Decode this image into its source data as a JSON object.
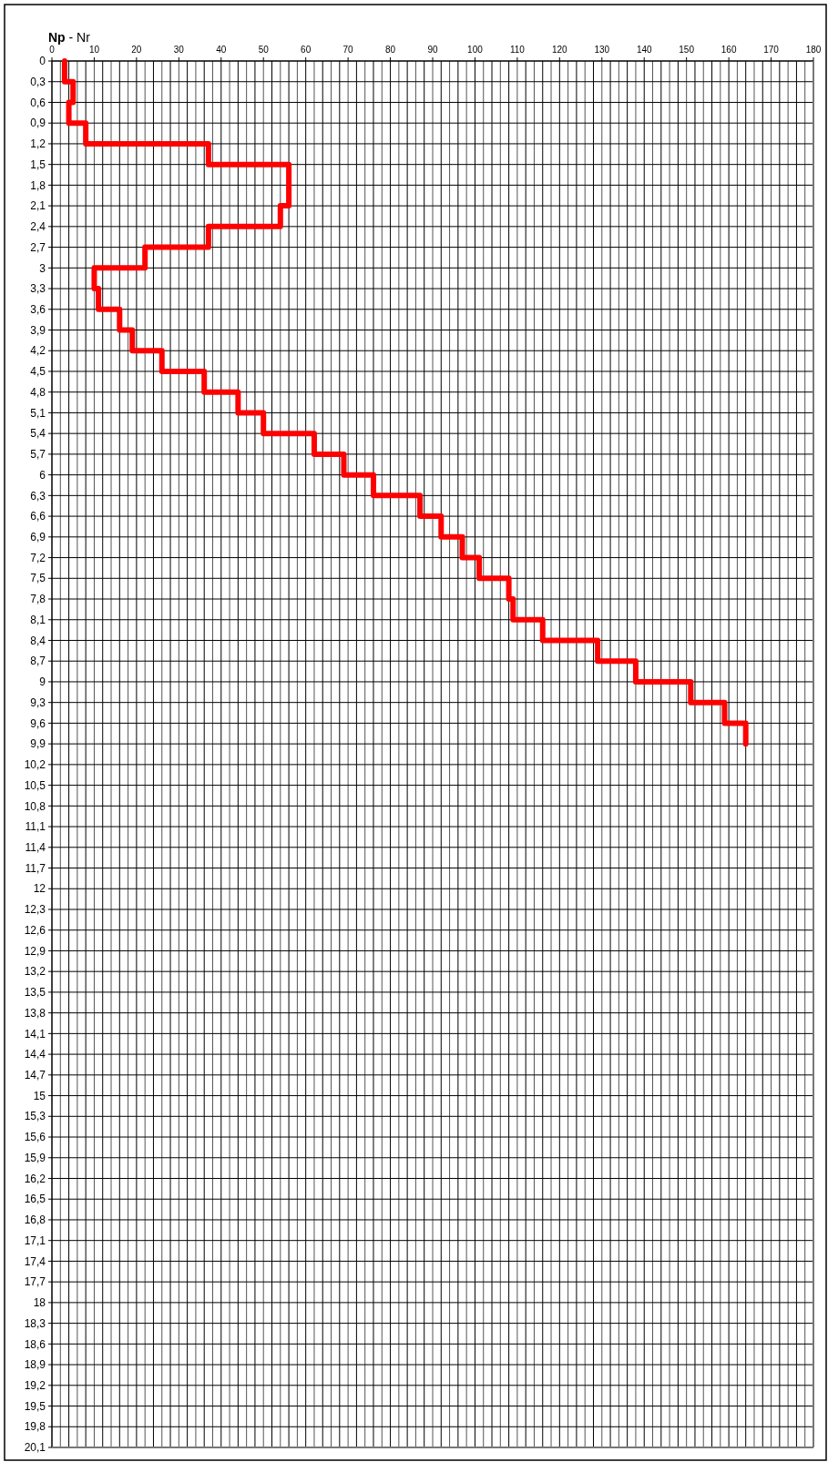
{
  "chart_data": {
    "type": "line",
    "xlabel": "Np - Nr",
    "x": [
      3,
      3,
      5,
      5,
      4,
      4,
      8,
      8,
      37,
      37,
      56,
      56,
      56,
      56,
      54,
      54,
      37,
      37,
      22,
      22,
      10,
      10,
      11,
      11,
      16,
      16,
      19,
      19,
      26,
      26,
      36,
      36,
      44,
      44,
      50,
      50,
      62,
      62,
      69,
      69,
      76,
      76,
      87,
      87,
      92,
      92,
      97,
      97,
      101,
      101,
      108,
      108,
      109,
      109,
      116,
      116,
      129,
      129,
      138,
      138,
      151,
      151,
      159,
      159,
      164,
      164
    ],
    "series": [
      {
        "color": "#ff0000",
        "values": [
          0,
          0.3,
          0.3,
          0.6,
          0.6,
          0.9,
          0.9,
          1.2,
          1.2,
          1.5,
          1.5,
          1.8,
          1.8,
          2.1,
          2.1,
          2.4,
          2.4,
          2.7,
          2.7,
          3,
          3,
          3.3,
          3.3,
          3.6,
          3.6,
          3.9,
          3.9,
          4.2,
          4.2,
          4.5,
          4.5,
          4.8,
          4.8,
          5.1,
          5.1,
          5.4,
          5.4,
          5.7,
          5.7,
          6,
          6,
          6.3,
          6.3,
          6.6,
          6.6,
          6.9,
          6.9,
          7.2,
          7.2,
          7.5,
          7.5,
          7.8,
          7.8,
          8.1,
          8.1,
          8.4,
          8.4,
          8.7,
          8.7,
          9,
          9,
          9.3,
          9.3,
          9.6,
          9.6,
          9.9
        ]
      }
    ],
    "xlim": [
      0,
      180
    ],
    "xticks": [
      0,
      {
        "value": 2,
        "label": null
      },
      {
        "value": 4,
        "label": null
      },
      {
        "value": 6,
        "label": null
      },
      {
        "value": 8,
        "label": null
      },
      10,
      {
        "value": 12,
        "label": null
      },
      {
        "value": 14,
        "label": null
      },
      {
        "value": 16,
        "label": null
      },
      {
        "value": 18,
        "label": null
      },
      20,
      {
        "value": 22,
        "label": null
      },
      {
        "value": 24,
        "label": null
      },
      {
        "value": 26,
        "label": null
      },
      {
        "value": 28,
        "label": null
      },
      30,
      {
        "value": 32,
        "label": null
      },
      {
        "value": 34,
        "label": null
      },
      {
        "value": 36,
        "label": null
      },
      {
        "value": 38,
        "label": null
      },
      40,
      {
        "value": 42,
        "label": null
      },
      {
        "value": 44,
        "label": null
      },
      {
        "value": 46,
        "label": null
      },
      {
        "value": 48,
        "label": null
      },
      50,
      {
        "value": 52,
        "label": null
      },
      {
        "value": 54,
        "label": null
      },
      {
        "value": 56,
        "label": null
      },
      {
        "value": 58,
        "label": null
      },
      60,
      {
        "value": 62,
        "label": null
      },
      {
        "value": 64,
        "label": null
      },
      {
        "value": 66,
        "label": null
      },
      {
        "value": 68,
        "label": null
      },
      70,
      {
        "value": 72,
        "label": null
      },
      {
        "value": 74,
        "label": null
      },
      {
        "value": 76,
        "label": null
      },
      {
        "value": 78,
        "label": null
      },
      80,
      {
        "value": 82,
        "label": null
      },
      {
        "value": 84,
        "label": null
      },
      {
        "value": 86,
        "label": null
      },
      {
        "value": 88,
        "label": null
      },
      90,
      {
        "value": 92,
        "label": null
      },
      {
        "value": 94,
        "label": null
      },
      {
        "value": 96,
        "label": null
      },
      {
        "value": 98,
        "label": null
      },
      100,
      {
        "value": 102,
        "label": null
      },
      {
        "value": 104,
        "label": null
      },
      {
        "value": 106,
        "label": null
      },
      {
        "value": 108,
        "label": null
      },
      110,
      {
        "value": 112,
        "label": null
      },
      {
        "value": 114,
        "label": null
      },
      {
        "value": 116,
        "label": null
      },
      {
        "value": 118,
        "label": null
      },
      120,
      {
        "value": 122,
        "label": null
      },
      {
        "value": 124,
        "label": null
      },
      {
        "value": 126,
        "label": null
      },
      {
        "value": 128,
        "label": null
      },
      130,
      {
        "value": 132,
        "label": null
      },
      {
        "value": 134,
        "label": null
      },
      {
        "value": 136,
        "label": null
      },
      {
        "value": 138,
        "label": null
      },
      140,
      {
        "value": 142,
        "label": null
      },
      {
        "value": 144,
        "label": null
      },
      {
        "value": 146,
        "label": null
      },
      {
        "value": 148,
        "label": null
      },
      150,
      {
        "value": 152,
        "label": null
      },
      {
        "value": 154,
        "label": null
      },
      {
        "value": 156,
        "label": null
      },
      {
        "value": 158,
        "label": null
      },
      160,
      {
        "value": 162,
        "label": null
      },
      {
        "value": 164,
        "label": null
      },
      {
        "value": 166,
        "label": null
      },
      {
        "value": 168,
        "label": null
      },
      170,
      {
        "value": 172,
        "label": null
      },
      {
        "value": 174,
        "label": null
      },
      {
        "value": 176,
        "label": null
      },
      {
        "value": 178,
        "label": null
      },
      180
    ],
    "ylim": [
      20.1,
      0
    ],
    "yticks": [
      0,
      {
        "value": 0.3,
        "label": "0,3"
      },
      {
        "value": 0.6,
        "label": "0,6"
      },
      {
        "value": 0.9,
        "label": "0,9"
      },
      {
        "value": 1.2,
        "label": "1,2"
      },
      {
        "value": 1.5,
        "label": "1,5"
      },
      {
        "value": 1.8,
        "label": "1,8"
      },
      {
        "value": 2.1,
        "label": "2,1"
      },
      {
        "value": 2.4,
        "label": "2,4"
      },
      {
        "value": 2.7,
        "label": "2,7"
      },
      3,
      {
        "value": 3.3,
        "label": "3,3"
      },
      {
        "value": 3.6,
        "label": "3,6"
      },
      {
        "value": 3.9,
        "label": "3,9"
      },
      {
        "value": 4.2,
        "label": "4,2"
      },
      {
        "value": 4.5,
        "label": "4,5"
      },
      {
        "value": 4.8,
        "label": "4,8"
      },
      {
        "value": 5.1,
        "label": "5,1"
      },
      {
        "value": 5.4,
        "label": "5,4"
      },
      {
        "value": 5.7,
        "label": "5,7"
      },
      6,
      {
        "value": 6.3,
        "label": "6,3"
      },
      {
        "value": 6.6,
        "label": "6,6"
      },
      {
        "value": 6.9,
        "label": "6,9"
      },
      {
        "value": 7.2,
        "label": "7,2"
      },
      {
        "value": 7.5,
        "label": "7,5"
      },
      {
        "value": 7.8,
        "label": "7,8"
      },
      {
        "value": 8.1,
        "label": "8,1"
      },
      {
        "value": 8.4,
        "label": "8,4"
      },
      {
        "value": 8.7,
        "label": "8,7"
      },
      9,
      {
        "value": 9.3,
        "label": "9,3"
      },
      {
        "value": 9.6,
        "label": "9,6"
      },
      {
        "value": 9.9,
        "label": "9,9"
      },
      {
        "value": 10.2,
        "label": "10,2"
      },
      {
        "value": 10.5,
        "label": "10,5"
      },
      {
        "value": 10.8,
        "label": "10,8"
      },
      {
        "value": 11.1,
        "label": "11,1"
      },
      {
        "value": 11.4,
        "label": "11,4"
      },
      {
        "value": 11.7,
        "label": "11,7"
      },
      12,
      {
        "value": 12.3,
        "label": "12,3"
      },
      {
        "value": 12.6,
        "label": "12,6"
      },
      {
        "value": 12.9,
        "label": "12,9"
      },
      {
        "value": 13.2,
        "label": "13,2"
      },
      {
        "value": 13.5,
        "label": "13,5"
      },
      {
        "value": 13.8,
        "label": "13,8"
      },
      {
        "value": 14.1,
        "label": "14,1"
      },
      {
        "value": 14.4,
        "label": "14,4"
      },
      {
        "value": 14.7,
        "label": "14,7"
      },
      15,
      {
        "value": 15.3,
        "label": "15,3"
      },
      {
        "value": 15.6,
        "label": "15,6"
      },
      {
        "value": 15.9,
        "label": "15,9"
      },
      {
        "value": 16.2,
        "label": "16,2"
      },
      {
        "value": 16.5,
        "label": "16,5"
      },
      {
        "value": 16.8,
        "label": "16,8"
      },
      {
        "value": 17.1,
        "label": "17,1"
      },
      {
        "value": 17.4,
        "label": "17,4"
      },
      {
        "value": 17.7,
        "label": "17,7"
      },
      18,
      {
        "value": 18.3,
        "label": "18,3"
      },
      {
        "value": 18.6,
        "label": "18,6"
      },
      {
        "value": 18.9,
        "label": "18,9"
      },
      {
        "value": 19.2,
        "label": "19,2"
      },
      {
        "value": 19.5,
        "label": "19,5"
      },
      {
        "value": 19.8,
        "label": "19,8"
      },
      {
        "value": 20.1,
        "label": "20,1"
      }
    ],
    "grid": true,
    "marker": "none",
    "line_style": "solid"
  }
}
